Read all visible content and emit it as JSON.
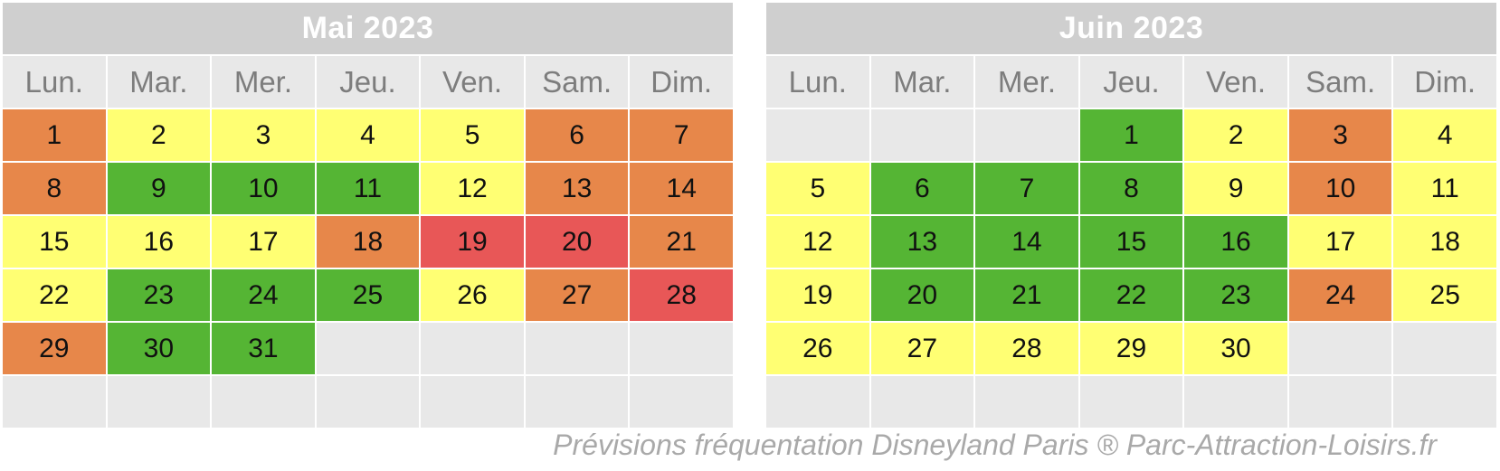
{
  "colors": {
    "green": "#55b534",
    "yellow": "#ffff73",
    "orange": "#e7874a",
    "red": "#e85757",
    "empty": "#e8e8e8"
  },
  "months": [
    {
      "title": "Mai 2023",
      "weekdays": [
        "Lun.",
        "Mar.",
        "Mer.",
        "Jeu.",
        "Ven.",
        "Sam.",
        "Dim."
      ],
      "start_offset": 0,
      "days": [
        {
          "n": "1",
          "level": "orange"
        },
        {
          "n": "2",
          "level": "yellow"
        },
        {
          "n": "3",
          "level": "yellow"
        },
        {
          "n": "4",
          "level": "yellow"
        },
        {
          "n": "5",
          "level": "yellow"
        },
        {
          "n": "6",
          "level": "orange"
        },
        {
          "n": "7",
          "level": "orange"
        },
        {
          "n": "8",
          "level": "orange"
        },
        {
          "n": "9",
          "level": "green"
        },
        {
          "n": "10",
          "level": "green"
        },
        {
          "n": "11",
          "level": "green"
        },
        {
          "n": "12",
          "level": "yellow"
        },
        {
          "n": "13",
          "level": "orange"
        },
        {
          "n": "14",
          "level": "orange"
        },
        {
          "n": "15",
          "level": "yellow"
        },
        {
          "n": "16",
          "level": "yellow"
        },
        {
          "n": "17",
          "level": "yellow"
        },
        {
          "n": "18",
          "level": "orange"
        },
        {
          "n": "19",
          "level": "red"
        },
        {
          "n": "20",
          "level": "red"
        },
        {
          "n": "21",
          "level": "orange"
        },
        {
          "n": "22",
          "level": "yellow"
        },
        {
          "n": "23",
          "level": "green"
        },
        {
          "n": "24",
          "level": "green"
        },
        {
          "n": "25",
          "level": "green"
        },
        {
          "n": "26",
          "level": "yellow"
        },
        {
          "n": "27",
          "level": "orange"
        },
        {
          "n": "28",
          "level": "red"
        },
        {
          "n": "29",
          "level": "orange"
        },
        {
          "n": "30",
          "level": "green"
        },
        {
          "n": "31",
          "level": "green"
        }
      ]
    },
    {
      "title": "Juin 2023",
      "weekdays": [
        "Lun.",
        "Mar.",
        "Mer.",
        "Jeu.",
        "Ven.",
        "Sam.",
        "Dim."
      ],
      "start_offset": 3,
      "days": [
        {
          "n": "1",
          "level": "green"
        },
        {
          "n": "2",
          "level": "yellow"
        },
        {
          "n": "3",
          "level": "orange"
        },
        {
          "n": "4",
          "level": "yellow"
        },
        {
          "n": "5",
          "level": "yellow"
        },
        {
          "n": "6",
          "level": "green"
        },
        {
          "n": "7",
          "level": "green"
        },
        {
          "n": "8",
          "level": "green"
        },
        {
          "n": "9",
          "level": "yellow"
        },
        {
          "n": "10",
          "level": "orange"
        },
        {
          "n": "11",
          "level": "yellow"
        },
        {
          "n": "12",
          "level": "yellow"
        },
        {
          "n": "13",
          "level": "green"
        },
        {
          "n": "14",
          "level": "green"
        },
        {
          "n": "15",
          "level": "green"
        },
        {
          "n": "16",
          "level": "green"
        },
        {
          "n": "17",
          "level": "yellow"
        },
        {
          "n": "18",
          "level": "yellow"
        },
        {
          "n": "19",
          "level": "yellow"
        },
        {
          "n": "20",
          "level": "green"
        },
        {
          "n": "21",
          "level": "green"
        },
        {
          "n": "22",
          "level": "green"
        },
        {
          "n": "23",
          "level": "green"
        },
        {
          "n": "24",
          "level": "orange"
        },
        {
          "n": "25",
          "level": "yellow"
        },
        {
          "n": "26",
          "level": "yellow"
        },
        {
          "n": "27",
          "level": "yellow"
        },
        {
          "n": "28",
          "level": "yellow"
        },
        {
          "n": "29",
          "level": "yellow"
        },
        {
          "n": "30",
          "level": "yellow"
        }
      ]
    }
  ],
  "footer": "Prévisions fréquentation Disneyland Paris  ® Parc-Attraction-Loisirs.fr"
}
